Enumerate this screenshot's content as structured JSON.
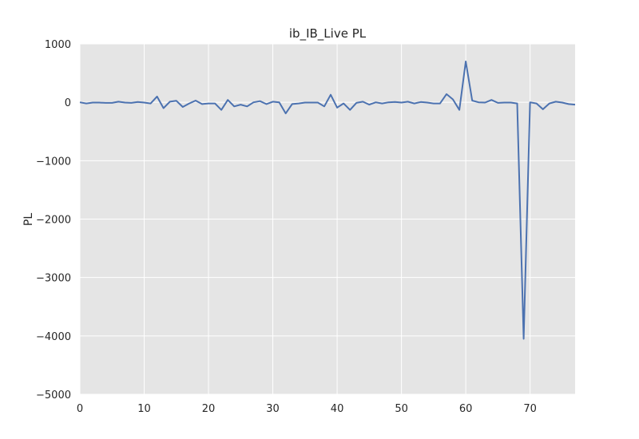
{
  "chart_data": {
    "type": "line",
    "title": "ib_IB_Live PL",
    "xlabel": "",
    "ylabel": "PL",
    "xlim": [
      0,
      77
    ],
    "ylim": [
      -5000,
      1000
    ],
    "grid": true,
    "xticks": [
      0,
      10,
      20,
      30,
      40,
      50,
      60,
      70
    ],
    "yticks": [
      1000,
      0,
      -1000,
      -2000,
      -3000,
      -4000,
      -5000
    ],
    "xtick_labels": [
      "0",
      "10",
      "20",
      "30",
      "40",
      "50",
      "60",
      "70"
    ],
    "ytick_labels": [
      "1000",
      "0",
      "−1000",
      "−2000",
      "−3000",
      "−4000",
      "−5000"
    ],
    "colors": {
      "line": "#4c72b0",
      "plot_bg": "#e5e5e5",
      "grid": "#ffffff",
      "text": "#262626"
    },
    "series": [
      {
        "x": [
          0,
          1,
          2,
          3,
          4,
          5,
          6,
          7,
          8,
          9,
          10,
          11,
          12,
          13,
          14,
          15,
          16,
          17,
          18,
          19,
          20,
          21,
          22,
          23,
          24,
          25,
          26,
          27,
          28,
          29,
          30,
          31,
          32,
          33,
          34,
          35,
          36,
          37,
          38,
          39,
          40,
          41,
          42,
          43,
          44,
          45,
          46,
          47,
          48,
          49,
          50,
          51,
          52,
          53,
          54,
          55,
          56,
          57,
          58,
          59,
          60,
          61,
          62,
          63,
          64,
          65,
          66,
          67,
          68,
          69,
          70,
          71,
          72,
          73,
          74,
          75,
          76,
          77
        ],
        "values": [
          0,
          -20,
          -5,
          -5,
          -10,
          -10,
          10,
          -5,
          -10,
          5,
          -5,
          -20,
          100,
          -100,
          10,
          25,
          -80,
          -20,
          30,
          -30,
          -20,
          -20,
          -130,
          40,
          -70,
          -40,
          -70,
          0,
          20,
          -30,
          10,
          0,
          -190,
          -30,
          -20,
          -5,
          -5,
          -5,
          -70,
          130,
          -90,
          -20,
          -130,
          -10,
          10,
          -40,
          0,
          -20,
          0,
          5,
          -5,
          10,
          -20,
          5,
          -5,
          -20,
          -20,
          140,
          50,
          -130,
          700,
          30,
          0,
          -5,
          40,
          -10,
          -5,
          -5,
          -20,
          -4050,
          0,
          -20,
          -120,
          -20,
          10,
          -5,
          -30,
          -40
        ]
      }
    ]
  }
}
